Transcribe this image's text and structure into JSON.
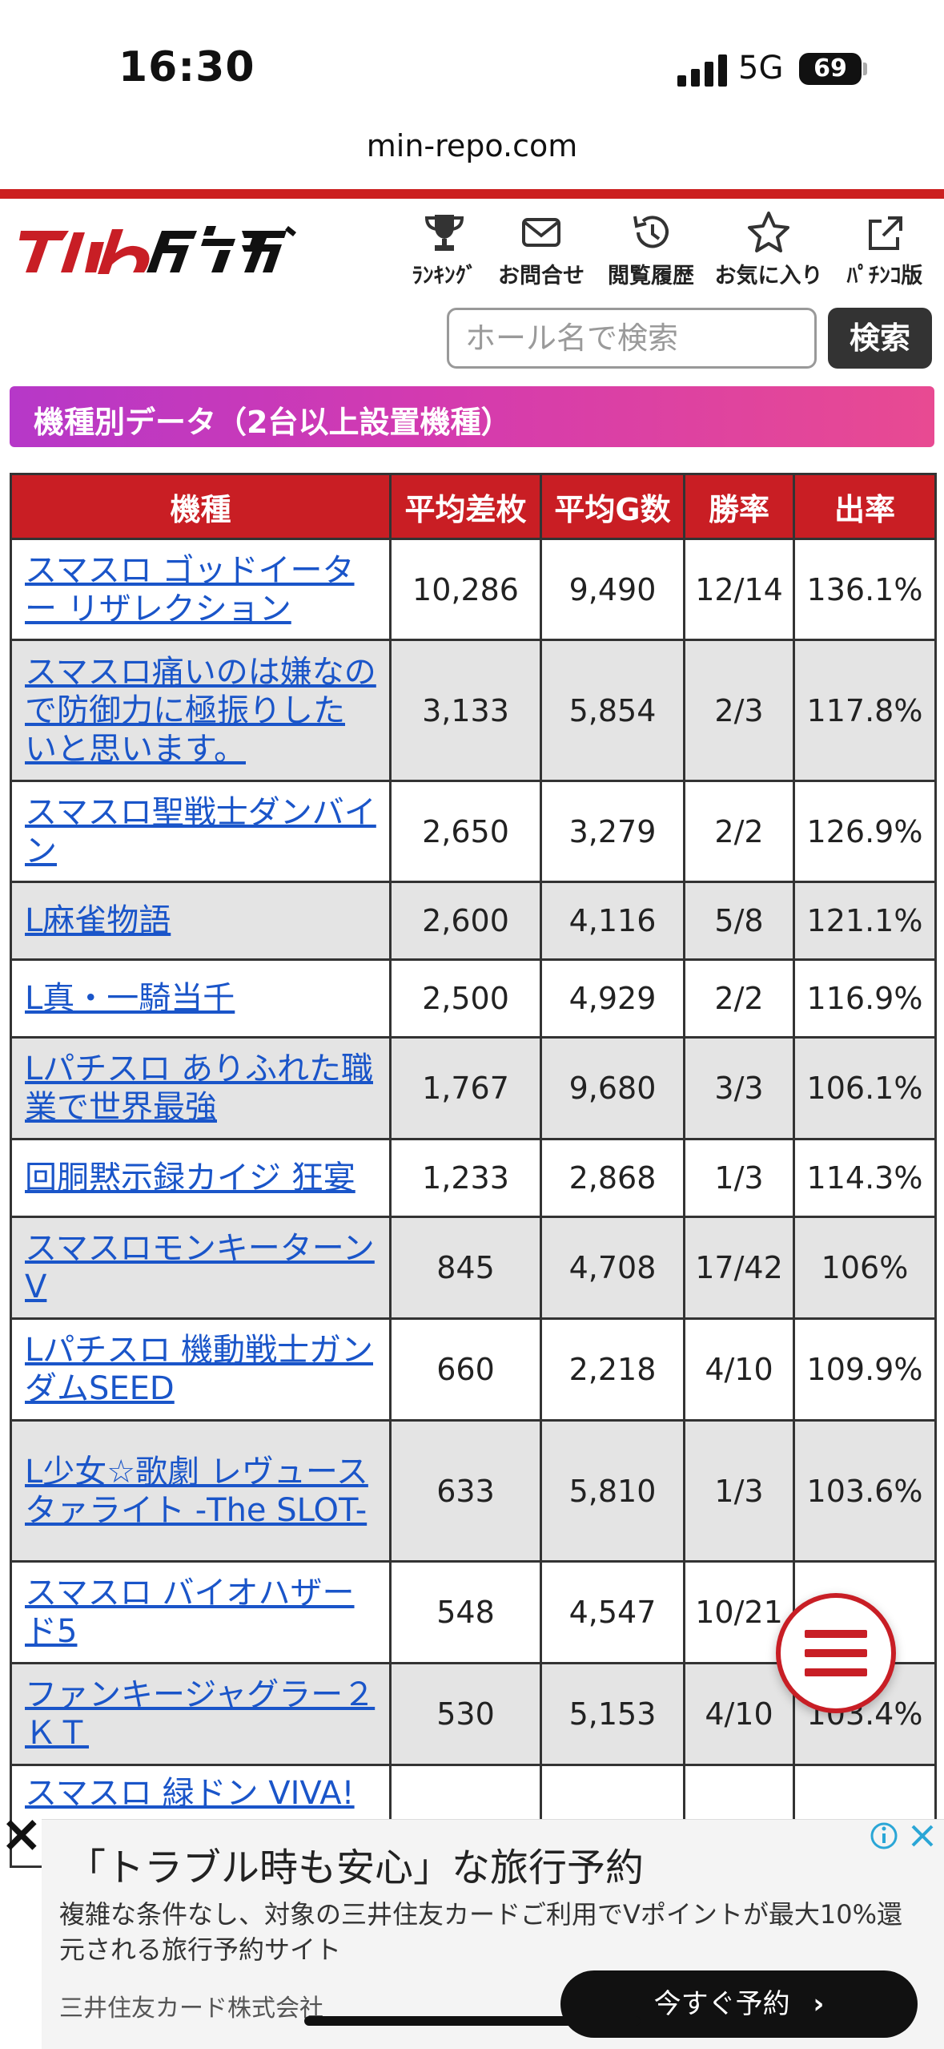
{
  "status_bar": {
    "time": "16:30",
    "network": "5G",
    "battery": "69"
  },
  "browser": {
    "url": "min-repo.com"
  },
  "header": {
    "nav": [
      {
        "label": "ﾗﾝｷﾝｸﾞ",
        "icon": "trophy-icon"
      },
      {
        "label": "お問合せ",
        "icon": "mail-icon"
      },
      {
        "label": "閲覧履歴",
        "icon": "history-icon"
      },
      {
        "label": "お気に入り",
        "icon": "star-icon"
      },
      {
        "label": "ﾊﾟﾁﾝｺ版",
        "icon": "external-link-icon"
      }
    ],
    "search_placeholder": "ホール名で検索",
    "search_button": "検索"
  },
  "section_title": "機種別データ（2台以上設置機種）",
  "table": {
    "headers": [
      "機種",
      "平均差枚",
      "平均G数",
      "勝率",
      "出率"
    ],
    "rows": [
      [
        "スマスロ ゴッドイーター リザレクション",
        "10,286",
        "9,490",
        "12/14",
        "136.1%"
      ],
      [
        "スマスロ痛いのは嫌なので防御力に極振りしたいと思います。",
        "3,133",
        "5,854",
        "2/3",
        "117.8%"
      ],
      [
        "スマスロ聖戦士ダンバイン",
        "2,650",
        "3,279",
        "2/2",
        "126.9%"
      ],
      [
        "L麻雀物語",
        "2,600",
        "4,116",
        "5/8",
        "121.1%"
      ],
      [
        "L真・一騎当千",
        "2,500",
        "4,929",
        "2/2",
        "116.9%"
      ],
      [
        "Lパチスロ ありふれた職業で世界最強",
        "1,767",
        "9,680",
        "3/3",
        "106.1%"
      ],
      [
        "回胴黙示録カイジ 狂宴",
        "1,233",
        "2,868",
        "1/3",
        "114.3%"
      ],
      [
        "スマスロモンキーターンV",
        "845",
        "4,708",
        "17/42",
        "106%"
      ],
      [
        "Lパチスロ 機動戦士ガンダムSEED",
        "660",
        "2,218",
        "4/10",
        "109.9%"
      ],
      [
        "L少女☆歌劇 レヴュースタァライト -The SLOT-",
        "633",
        "5,810",
        "1/3",
        "103.6%"
      ],
      [
        "スマスロ バイオハザード5",
        "548",
        "4,547",
        "10/21",
        ""
      ],
      [
        "ファンキージャグラー２ＫＴ",
        "530",
        "5,153",
        "4/10",
        "103.4%"
      ],
      [
        "スマスロ 緑ドン VIVA!",
        "",
        "",
        "",
        ""
      ]
    ]
  },
  "ad": {
    "title": "「トラブル時も安心」な旅行予約",
    "body": "複雑な条件なし、対象の三井住友カードご利用でVポイントが最大10%還元される旅行予約サイト",
    "advertiser": "三井住友カード株式会社",
    "cta": "今すぐ予約",
    "cta_icon": "chevron-right-icon"
  }
}
